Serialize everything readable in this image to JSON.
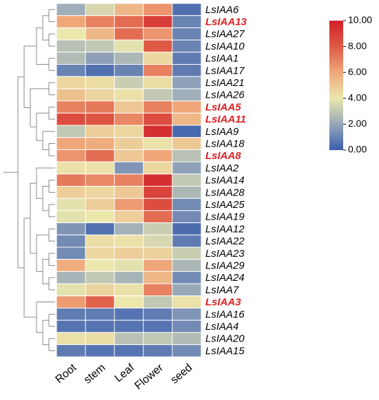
{
  "chart_data": {
    "type": "heatmap",
    "columns": [
      "Root",
      "stem",
      "Leaf",
      "Flower",
      "seed"
    ],
    "rows": [
      "LsIAA6",
      "LsIAA13",
      "LsIAA27",
      "LsIAA10",
      "LsIAA1",
      "LsIAA17",
      "LsIAA21",
      "LsIAA26",
      "LsIAA5",
      "LsIAA11",
      "LsIAA9",
      "LsIAA18",
      "LsIAA8",
      "LsIAA2",
      "LsIAA14",
      "LsIAA28",
      "LsIAA25",
      "LsIAA19",
      "LsIAA12",
      "LsIAA22",
      "LsIAA23",
      "LsIAA29",
      "LsIAA24",
      "LsIAA7",
      "LsIAA3",
      "LsIAA16",
      "LsIAA4",
      "LsIAA20",
      "LsIAA15"
    ],
    "label_colors": [
      "#000",
      "#e02020",
      "#000",
      "#000",
      "#000",
      "#000",
      "#000",
      "#000",
      "#e02020",
      "#e02020",
      "#000",
      "#000",
      "#e02020",
      "#000",
      "#000",
      "#000",
      "#000",
      "#000",
      "#000",
      "#000",
      "#000",
      "#000",
      "#000",
      "#000",
      "#e02020",
      "#000",
      "#000",
      "#000",
      "#000"
    ],
    "values": [
      [
        2.2,
        3.5,
        5.5,
        6.5,
        0.5
      ],
      [
        6,
        7,
        7.5,
        9,
        1
      ],
      [
        4,
        5.5,
        7.5,
        6.5,
        1
      ],
      [
        2.8,
        3,
        3.8,
        8,
        1
      ],
      [
        2.6,
        1.8,
        2.5,
        4.5,
        0.8
      ],
      [
        1,
        0.5,
        1,
        7,
        0.8
      ],
      [
        4.5,
        4.3,
        3.2,
        4.3,
        1.8
      ],
      [
        5.2,
        4.6,
        4.2,
        3,
        2.2
      ],
      [
        7,
        7.2,
        5,
        7,
        6
      ],
      [
        8.5,
        8.2,
        6.8,
        8.5,
        5.5
      ],
      [
        3,
        4.8,
        4.5,
        9.5,
        0.3
      ],
      [
        6,
        5.8,
        4.8,
        4.2,
        5
      ],
      [
        6.5,
        7.5,
        5,
        6,
        2.8
      ],
      [
        4.2,
        4.2,
        1.5,
        4.5,
        1.8
      ],
      [
        7.2,
        6.8,
        7,
        9.5,
        3
      ],
      [
        4.8,
        4.5,
        5,
        8.8,
        2.5
      ],
      [
        3.8,
        4.8,
        6.3,
        8.5,
        1.2
      ],
      [
        3.8,
        4,
        4.8,
        7.5,
        1.2
      ],
      [
        1.5,
        0.5,
        2.3,
        3.2,
        0.4
      ],
      [
        1.2,
        4.3,
        4.2,
        3.5,
        0.8
      ],
      [
        1.2,
        4.5,
        4.8,
        4.7,
        3.2
      ],
      [
        5.8,
        4,
        3.8,
        6,
        2.5
      ],
      [
        2.4,
        3,
        2.4,
        5.5,
        1.2
      ],
      [
        3.8,
        4.6,
        4.2,
        7,
        2
      ],
      [
        6.3,
        7.8,
        4,
        3,
        4.2
      ],
      [
        0.8,
        0.8,
        0.6,
        0.8,
        1.5
      ],
      [
        0.6,
        0.6,
        0.6,
        0.6,
        1.2
      ],
      [
        4.2,
        4.3,
        2.8,
        3,
        2.6
      ],
      [
        0.8,
        0.6,
        0.6,
        0.8,
        1.2
      ]
    ],
    "zlim": [
      0,
      10
    ],
    "zticks": [
      {
        "value": 0,
        "label": "0.00"
      },
      {
        "value": 2,
        "label": "2.00"
      },
      {
        "value": 4,
        "label": "4.00"
      },
      {
        "value": 6,
        "label": "6.00"
      },
      {
        "value": 8,
        "label": "8.00"
      },
      {
        "value": 10,
        "label": "10.00"
      }
    ],
    "colorscale": [
      "#3a5dad",
      "#97a8b9",
      "#ebe7ad",
      "#efa77a",
      "#df5a45",
      "#d2202b"
    ]
  }
}
